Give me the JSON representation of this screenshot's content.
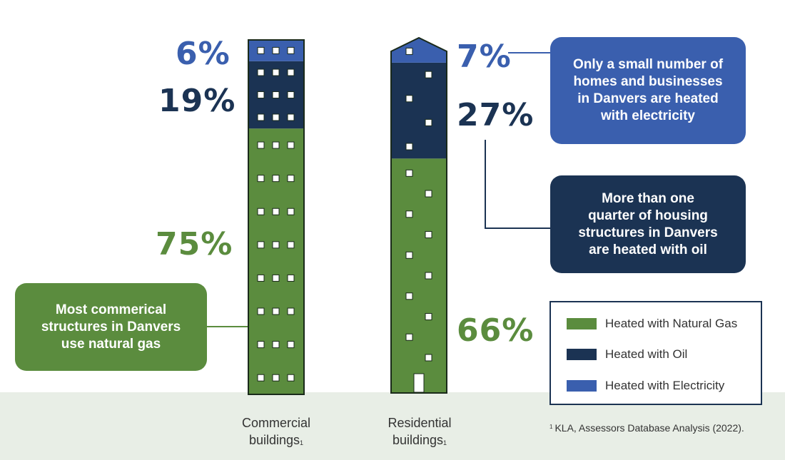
{
  "colors": {
    "gas": "#5b8c3e",
    "oil": "#1b3353",
    "electricity": "#3a5fae",
    "ground": "#e8eee6",
    "outline": "#1a2a1a",
    "window": "#ffffff"
  },
  "chart_data": {
    "type": "bar",
    "categories": [
      "Commercial buildings",
      "Residential buildings"
    ],
    "series": [
      {
        "name": "Heated with Natural Gas",
        "values": [
          75,
          66
        ]
      },
      {
        "name": "Heated with Oil",
        "values": [
          19,
          27
        ]
      },
      {
        "name": "Heated with Electricity",
        "values": [
          6,
          7
        ]
      }
    ],
    "stacked": true,
    "ylim": [
      0,
      100
    ],
    "data_labels": {
      "commercial": {
        "electricity": "6%",
        "oil": "19%",
        "gas": "75%"
      },
      "residential": {
        "electricity": "7%",
        "oil": "27%",
        "gas": "66%"
      }
    },
    "legend": {
      "position": "bottom-right",
      "items": [
        "Heated with Natural Gas",
        "Heated with Oil",
        "Heated with Electricity"
      ]
    }
  },
  "labels": {
    "commercial": {
      "line1": "Commercial",
      "line2": "buildings",
      "sup": "1"
    },
    "residential": {
      "line1": "Residential",
      "line2": "buildings",
      "sup": "1"
    }
  },
  "callouts": {
    "electricity": [
      "Only a small number of",
      "homes and businesses",
      "in Danvers are heated",
      "with electricity"
    ],
    "oil": [
      "More than one",
      "quarter of housing",
      "structures in Danvers",
      "are heated with oil"
    ],
    "gas": [
      "Most commerical",
      "structures in Danvers",
      "use natural gas"
    ]
  },
  "footnote": {
    "sup": "1",
    "text": "KLA, Assessors Database Analysis (2022)."
  }
}
